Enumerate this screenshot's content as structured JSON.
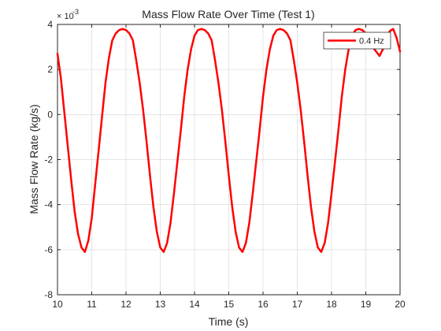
{
  "chart_data": {
    "type": "line",
    "title": "Mass Flow Rate Over Time (Test 1)",
    "xlabel": "Time (s)",
    "ylabel": "Mass Flow Rate (kg/s)",
    "y_exponent_label": "× 10",
    "y_exponent_power": "-3",
    "xlim": [
      10,
      20
    ],
    "ylim": [
      -8,
      4
    ],
    "y_multiplier": 0.001,
    "x_ticks": [
      "10",
      "11",
      "12",
      "13",
      "14",
      "15",
      "16",
      "17",
      "18",
      "19",
      "20"
    ],
    "y_ticks": [
      "-8",
      "-6",
      "-4",
      "-2",
      "0",
      "2",
      "4"
    ],
    "grid": true,
    "legend_position": "top-right",
    "series": [
      {
        "name": "0.4 Hz",
        "color": "#ff0000",
        "x": [
          10.0,
          10.1,
          10.2,
          10.3,
          10.4,
          10.5,
          10.6,
          10.7,
          10.8,
          10.9,
          11.0,
          11.1,
          11.2,
          11.3,
          11.4,
          11.5,
          11.6,
          11.7,
          11.8,
          11.9,
          12.0,
          12.1,
          12.2,
          12.3,
          12.4,
          12.5,
          12.6,
          12.7,
          12.8,
          12.9,
          13.0,
          13.1,
          13.2,
          13.3,
          13.4,
          13.5,
          13.6,
          13.7,
          13.8,
          13.9,
          14.0,
          14.1,
          14.2,
          14.3,
          14.4,
          14.5,
          14.6,
          14.7,
          14.8,
          14.9,
          15.0,
          15.1,
          15.2,
          15.3,
          15.4,
          15.5,
          15.6,
          15.7,
          15.8,
          15.9,
          16.0,
          16.1,
          16.2,
          16.3,
          16.4,
          16.5,
          16.6,
          16.7,
          16.8,
          16.9,
          17.0,
          17.1,
          17.2,
          17.3,
          17.4,
          17.5,
          17.6,
          17.7,
          17.8,
          17.9,
          18.0,
          18.1,
          18.2,
          18.3,
          18.4,
          18.5,
          18.6,
          18.7,
          18.8,
          18.9,
          19.0,
          19.1,
          19.2,
          19.3,
          19.4,
          19.5,
          19.6,
          19.7,
          19.8,
          19.9,
          20.0
        ],
        "y": [
          2.7,
          1.6,
          0.1,
          -1.4,
          -2.9,
          -4.3,
          -5.3,
          -5.9,
          -6.1,
          -5.6,
          -4.6,
          -3.1,
          -1.6,
          -0.1,
          1.4,
          2.5,
          3.3,
          3.6,
          3.75,
          3.8,
          3.75,
          3.6,
          3.3,
          2.4,
          1.4,
          0.2,
          -1.2,
          -2.7,
          -4.1,
          -5.2,
          -5.9,
          -6.1,
          -5.7,
          -4.8,
          -3.5,
          -2.1,
          -0.7,
          0.8,
          2.0,
          2.9,
          3.5,
          3.75,
          3.8,
          3.75,
          3.6,
          3.3,
          2.4,
          1.4,
          0.2,
          -1.2,
          -2.7,
          -4.1,
          -5.2,
          -5.9,
          -6.1,
          -5.7,
          -4.8,
          -3.5,
          -2.1,
          -0.7,
          0.8,
          2.0,
          2.9,
          3.5,
          3.75,
          3.8,
          3.75,
          3.6,
          3.3,
          2.4,
          1.4,
          0.2,
          -1.2,
          -2.7,
          -4.1,
          -5.2,
          -5.9,
          -6.1,
          -5.7,
          -4.8,
          -3.5,
          -2.1,
          -0.7,
          0.8,
          2.0,
          2.9,
          3.5,
          3.75,
          3.8,
          3.75,
          3.6,
          3.3,
          3.0,
          2.8,
          2.6,
          2.9,
          3.4,
          3.7,
          3.8,
          3.4,
          2.8
        ]
      }
    ]
  }
}
